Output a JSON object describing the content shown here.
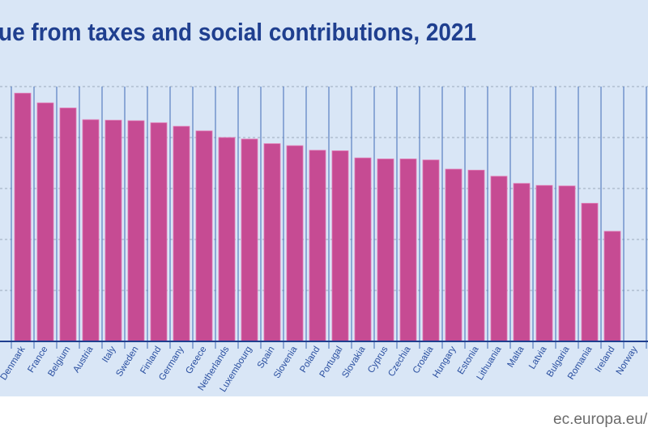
{
  "chart_data": {
    "type": "bar",
    "title": "ue from taxes and social contributions, 2021",
    "source": "ec.europa.eu/e",
    "categories": [
      "Denmark",
      "France",
      "Belgium",
      "Austria",
      "Italy",
      "Sweden",
      "Finland",
      "Germany",
      "Greece",
      "Netherlands",
      "Luxembourg",
      "Spain",
      "Slovenia",
      "Poland",
      "Portugal",
      "Slovakia",
      "Cyprus",
      "Czechia",
      "Croatia",
      "Hungary",
      "Estonia",
      "Lithuania",
      "Malta",
      "Latvia",
      "Bulgaria",
      "Romania",
      "Ireland",
      "Norway"
    ],
    "values": [
      48.7,
      46.8,
      45.8,
      43.5,
      43.4,
      43.3,
      42.9,
      42.2,
      41.3,
      40.0,
      39.7,
      38.8,
      38.4,
      37.5,
      37.4,
      36.0,
      35.8,
      35.8,
      35.6,
      33.8,
      33.6,
      32.4,
      31.0,
      30.6,
      30.5,
      27.1,
      21.6,
      null
    ],
    "ylim": [
      0,
      50
    ],
    "yticks": [
      0,
      10,
      20,
      30,
      40,
      50
    ],
    "grid": true,
    "xlabel": "",
    "ylabel": "",
    "colors": {
      "bar": "#c64b93",
      "background": "#d9e6f6",
      "text": "#1f3f8f",
      "separator": "#5a7fc0"
    }
  }
}
